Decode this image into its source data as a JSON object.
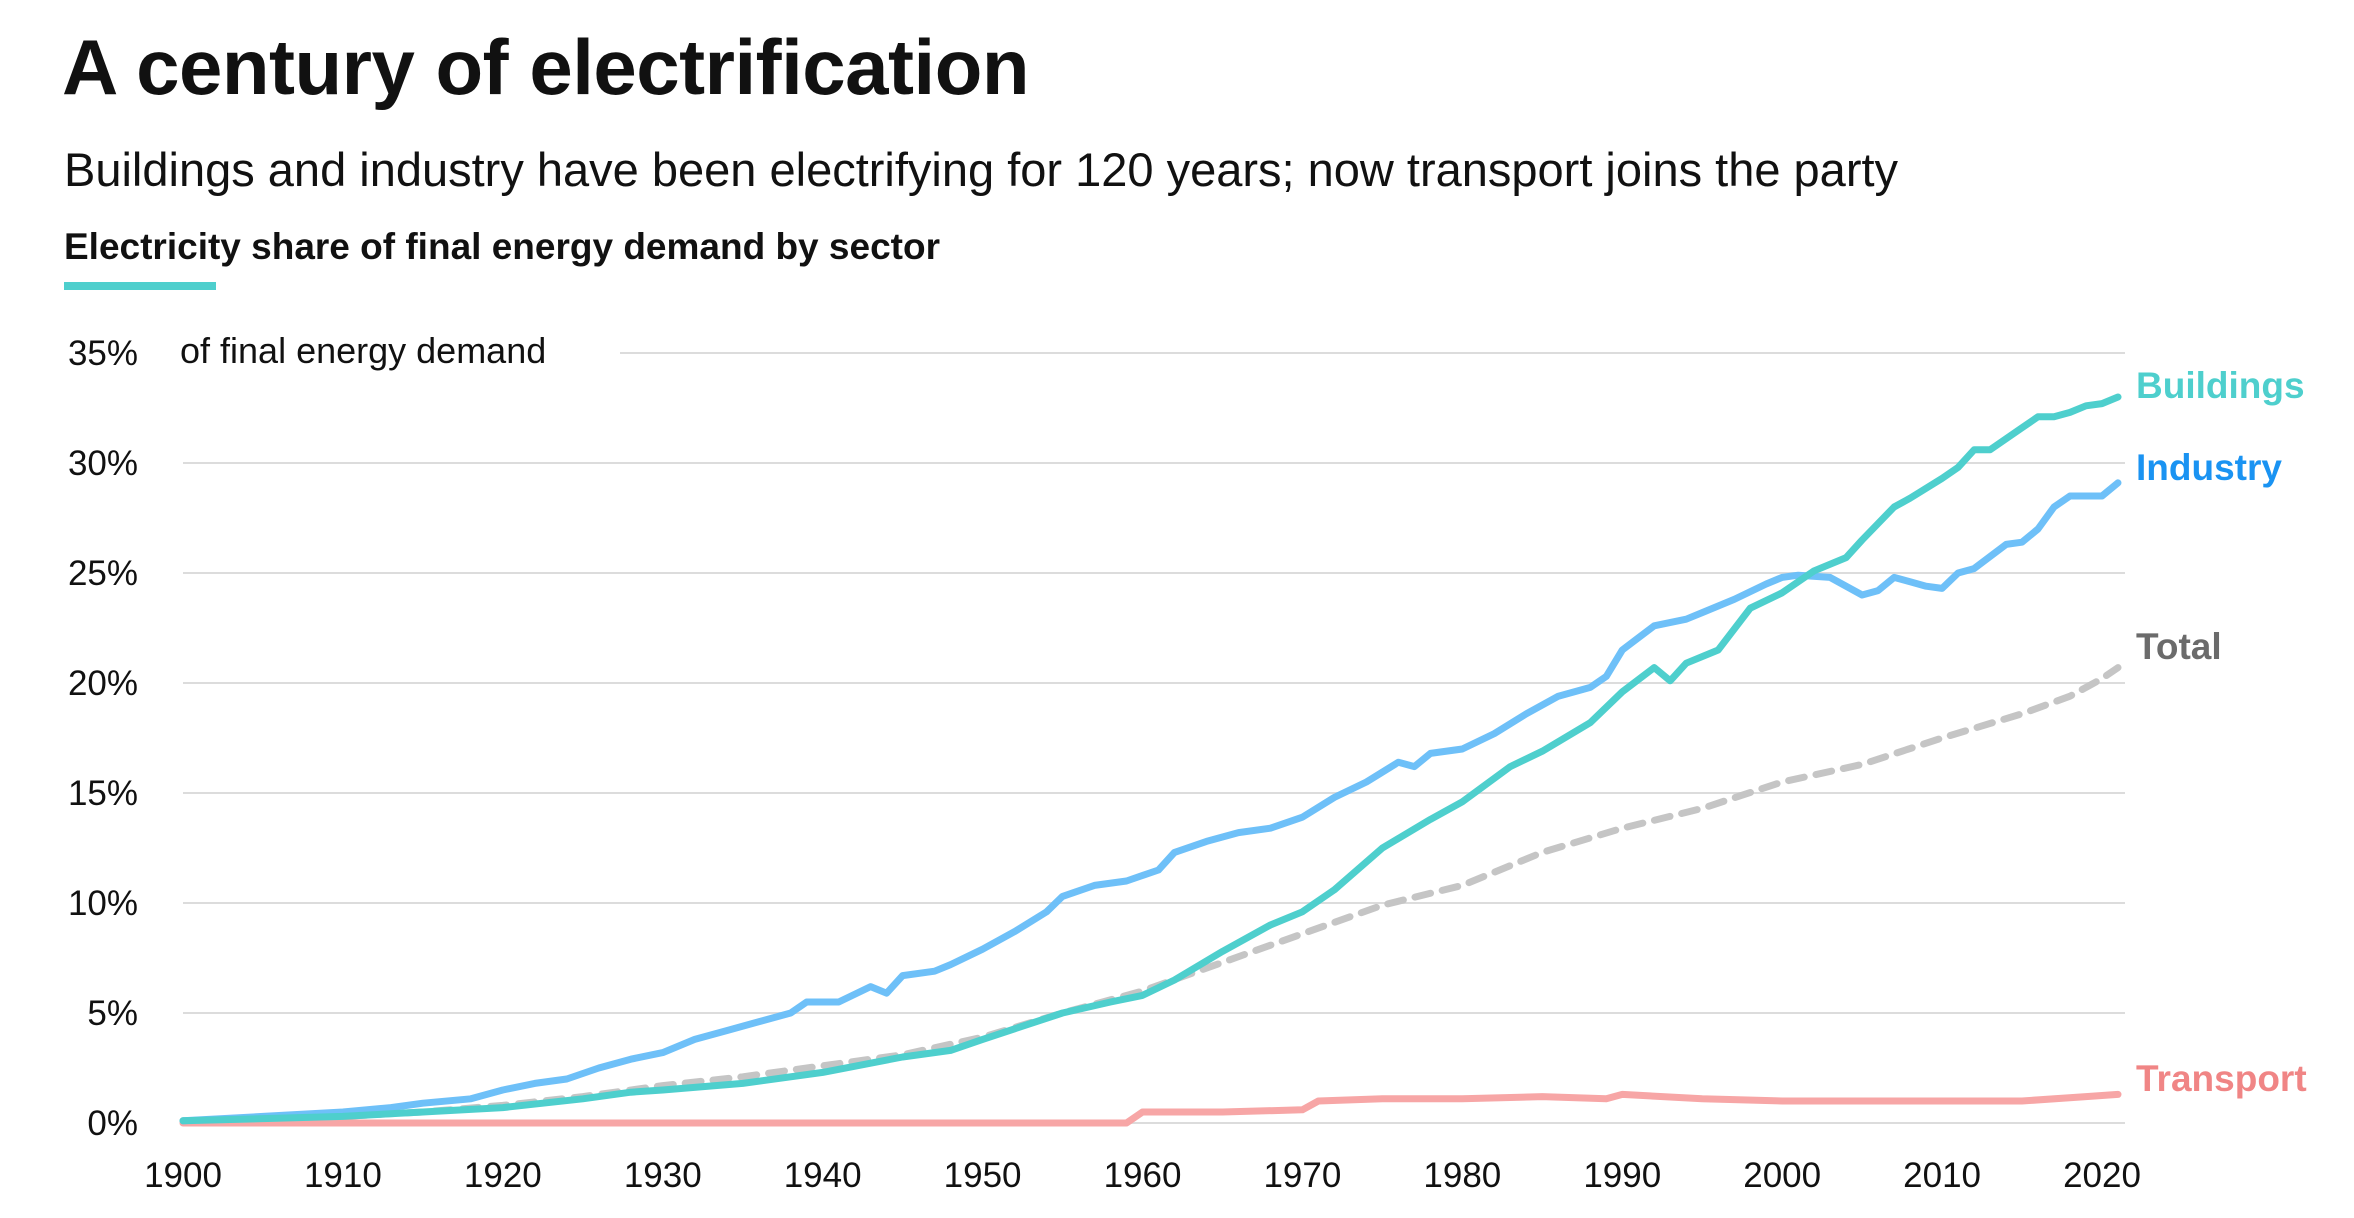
{
  "title": "A century of electrification",
  "subtitle": "Buildings and industry have been electrifying for 120 years; now transport joins the party",
  "chart_heading": "Electricity share of final energy demand by sector",
  "chart_data": {
    "type": "line",
    "title": "Electricity share of final energy demand by sector",
    "ylabel": "of final energy demand",
    "xlabel": "",
    "xlim": [
      1900,
      2021
    ],
    "ylim": [
      0,
      35
    ],
    "y_unit": "%",
    "x_ticks": [
      1900,
      1910,
      1920,
      1930,
      1940,
      1950,
      1960,
      1970,
      1980,
      1990,
      2000,
      2010,
      2020
    ],
    "y_ticks": [
      0,
      5,
      10,
      15,
      20,
      25,
      30,
      35
    ],
    "y_tick_labels": [
      "0%",
      "5%",
      "10%",
      "15%",
      "20%",
      "25%",
      "30%",
      "35%"
    ],
    "grid": "horizontal",
    "legend": "end-of-line labels",
    "series": [
      {
        "name": "Buildings",
        "color": "#4ecfcd",
        "style": "solid",
        "points": [
          [
            1900,
            0.1
          ],
          [
            1905,
            0.2
          ],
          [
            1910,
            0.3
          ],
          [
            1915,
            0.5
          ],
          [
            1920,
            0.7
          ],
          [
            1925,
            1.1
          ],
          [
            1928,
            1.4
          ],
          [
            1930,
            1.5
          ],
          [
            1935,
            1.8
          ],
          [
            1940,
            2.3
          ],
          [
            1945,
            3.0
          ],
          [
            1948,
            3.3
          ],
          [
            1950,
            3.8
          ],
          [
            1955,
            5.0
          ],
          [
            1958,
            5.5
          ],
          [
            1960,
            5.8
          ],
          [
            1962,
            6.5
          ],
          [
            1965,
            7.8
          ],
          [
            1968,
            9.0
          ],
          [
            1970,
            9.6
          ],
          [
            1972,
            10.6
          ],
          [
            1975,
            12.5
          ],
          [
            1978,
            13.8
          ],
          [
            1980,
            14.6
          ],
          [
            1983,
            16.2
          ],
          [
            1985,
            16.9
          ],
          [
            1988,
            18.2
          ],
          [
            1990,
            19.6
          ],
          [
            1992,
            20.7
          ],
          [
            1993,
            20.1
          ],
          [
            1994,
            20.9
          ],
          [
            1996,
            21.5
          ],
          [
            1998,
            23.4
          ],
          [
            2000,
            24.1
          ],
          [
            2002,
            25.1
          ],
          [
            2004,
            25.7
          ],
          [
            2005,
            26.5
          ],
          [
            2007,
            28.0
          ],
          [
            2008,
            28.4
          ],
          [
            2010,
            29.3
          ],
          [
            2011,
            29.8
          ],
          [
            2012,
            30.6
          ],
          [
            2013,
            30.6
          ],
          [
            2015,
            31.6
          ],
          [
            2016,
            32.1
          ],
          [
            2017,
            32.1
          ],
          [
            2018,
            32.3
          ],
          [
            2019,
            32.6
          ],
          [
            2020,
            32.7
          ],
          [
            2021,
            33.0
          ]
        ]
      },
      {
        "name": "Industry",
        "color": "#3fa7f5",
        "style": "solid",
        "points": [
          [
            1900,
            0.1
          ],
          [
            1905,
            0.3
          ],
          [
            1910,
            0.5
          ],
          [
            1913,
            0.7
          ],
          [
            1915,
            0.9
          ],
          [
            1918,
            1.1
          ],
          [
            1920,
            1.5
          ],
          [
            1922,
            1.8
          ],
          [
            1924,
            2.0
          ],
          [
            1926,
            2.5
          ],
          [
            1928,
            2.9
          ],
          [
            1930,
            3.2
          ],
          [
            1932,
            3.8
          ],
          [
            1934,
            4.2
          ],
          [
            1936,
            4.6
          ],
          [
            1938,
            5.0
          ],
          [
            1939,
            5.5
          ],
          [
            1941,
            5.5
          ],
          [
            1943,
            6.2
          ],
          [
            1944,
            5.9
          ],
          [
            1945,
            6.7
          ],
          [
            1947,
            6.9
          ],
          [
            1948,
            7.2
          ],
          [
            1950,
            7.9
          ],
          [
            1952,
            8.7
          ],
          [
            1954,
            9.6
          ],
          [
            1955,
            10.3
          ],
          [
            1957,
            10.8
          ],
          [
            1959,
            11.0
          ],
          [
            1961,
            11.5
          ],
          [
            1962,
            12.3
          ],
          [
            1964,
            12.8
          ],
          [
            1966,
            13.2
          ],
          [
            1968,
            13.4
          ],
          [
            1970,
            13.9
          ],
          [
            1972,
            14.8
          ],
          [
            1974,
            15.5
          ],
          [
            1976,
            16.4
          ],
          [
            1977,
            16.2
          ],
          [
            1978,
            16.8
          ],
          [
            1980,
            17.0
          ],
          [
            1982,
            17.7
          ],
          [
            1984,
            18.6
          ],
          [
            1986,
            19.4
          ],
          [
            1988,
            19.8
          ],
          [
            1989,
            20.3
          ],
          [
            1990,
            21.5
          ],
          [
            1992,
            22.6
          ],
          [
            1994,
            22.9
          ],
          [
            1995,
            23.2
          ],
          [
            1997,
            23.8
          ],
          [
            1999,
            24.5
          ],
          [
            2000,
            24.8
          ],
          [
            2001,
            24.9
          ],
          [
            2003,
            24.8
          ],
          [
            2005,
            24.0
          ],
          [
            2006,
            24.2
          ],
          [
            2007,
            24.8
          ],
          [
            2008,
            24.6
          ],
          [
            2009,
            24.4
          ],
          [
            2010,
            24.3
          ],
          [
            2011,
            25.0
          ],
          [
            2012,
            25.2
          ],
          [
            2014,
            26.3
          ],
          [
            2015,
            26.4
          ],
          [
            2016,
            27.0
          ],
          [
            2017,
            28.0
          ],
          [
            2018,
            28.5
          ],
          [
            2020,
            28.5
          ],
          [
            2021,
            29.1
          ]
        ]
      },
      {
        "name": "Total",
        "color": "#c5c5c5",
        "style": "dashed",
        "points": [
          [
            1900,
            0.1
          ],
          [
            1905,
            0.2
          ],
          [
            1910,
            0.3
          ],
          [
            1915,
            0.5
          ],
          [
            1920,
            0.8
          ],
          [
            1925,
            1.2
          ],
          [
            1930,
            1.7
          ],
          [
            1935,
            2.1
          ],
          [
            1940,
            2.6
          ],
          [
            1945,
            3.1
          ],
          [
            1950,
            3.9
          ],
          [
            1955,
            5.0
          ],
          [
            1960,
            6.0
          ],
          [
            1965,
            7.3
          ],
          [
            1970,
            8.6
          ],
          [
            1975,
            9.9
          ],
          [
            1980,
            10.8
          ],
          [
            1985,
            12.3
          ],
          [
            1990,
            13.4
          ],
          [
            1995,
            14.3
          ],
          [
            2000,
            15.5
          ],
          [
            2005,
            16.3
          ],
          [
            2010,
            17.5
          ],
          [
            2015,
            18.6
          ],
          [
            2018,
            19.4
          ],
          [
            2020,
            20.2
          ],
          [
            2021,
            20.7
          ]
        ]
      },
      {
        "name": "Transport",
        "color": "#f7a6a6",
        "style": "solid",
        "points": [
          [
            1900,
            0.0
          ],
          [
            1959,
            0.0
          ],
          [
            1960,
            0.5
          ],
          [
            1965,
            0.5
          ],
          [
            1970,
            0.6
          ],
          [
            1971,
            1.0
          ],
          [
            1975,
            1.1
          ],
          [
            1980,
            1.1
          ],
          [
            1985,
            1.2
          ],
          [
            1989,
            1.1
          ],
          [
            1990,
            1.3
          ],
          [
            1995,
            1.1
          ],
          [
            2000,
            1.0
          ],
          [
            2005,
            1.0
          ],
          [
            2010,
            1.0
          ],
          [
            2015,
            1.0
          ],
          [
            2019,
            1.2
          ],
          [
            2021,
            1.3
          ]
        ]
      }
    ]
  }
}
